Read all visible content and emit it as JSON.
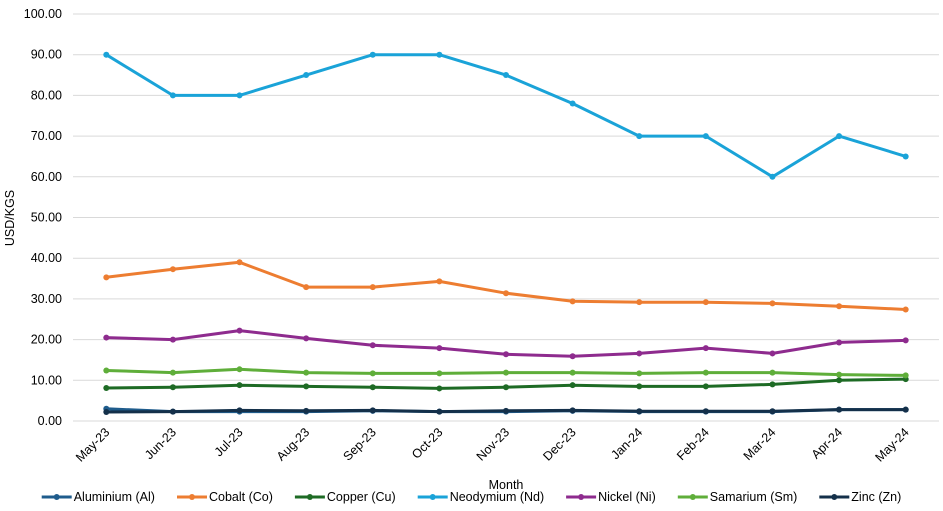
{
  "chart_data": {
    "type": "line",
    "title": "",
    "xlabel": "Month",
    "ylabel": "USD/KGS",
    "ylim": [
      0,
      100
    ],
    "y_ticks": [
      "0.00",
      "10.00",
      "20.00",
      "30.00",
      "40.00",
      "50.00",
      "60.00",
      "70.00",
      "80.00",
      "90.00",
      "100.00"
    ],
    "grid": "horizontal",
    "legend_position": "bottom",
    "categories": [
      "May-23",
      "Jun-23",
      "Jul-23",
      "Aug-23",
      "Sep-23",
      "Oct-23",
      "Nov-23",
      "Dec-23",
      "Jan-24",
      "Feb-24",
      "Mar-24",
      "Apr-24",
      "May-24"
    ],
    "series": [
      {
        "name": "Aluminium (Al)",
        "color": "#1f5c8c",
        "values": [
          3.0,
          2.3,
          2.3,
          2.3,
          2.5,
          2.3,
          2.3,
          2.5,
          2.3,
          2.3,
          2.3,
          2.8,
          2.8
        ]
      },
      {
        "name": "Cobalt (Co)",
        "color": "#ed7d31",
        "values": [
          35.3,
          37.3,
          39.0,
          32.9,
          32.9,
          34.3,
          31.4,
          29.4,
          29.2,
          29.2,
          28.9,
          28.2,
          27.4
        ]
      },
      {
        "name": "Copper (Cu)",
        "color": "#1e6b25",
        "values": [
          8.1,
          8.3,
          8.8,
          8.5,
          8.3,
          8.0,
          8.3,
          8.8,
          8.5,
          8.5,
          9.0,
          10.0,
          10.3
        ]
      },
      {
        "name": "Neodymium (Nd)",
        "color": "#1aa3d8",
        "values": [
          90.0,
          80.0,
          80.0,
          85.0,
          90.0,
          90.0,
          85.0,
          78.0,
          70.0,
          70.0,
          60.0,
          70.0,
          65.0
        ]
      },
      {
        "name": "Nickel (Ni)",
        "color": "#8e2b8e",
        "values": [
          20.5,
          20.0,
          22.2,
          20.3,
          18.6,
          17.9,
          16.4,
          15.9,
          16.6,
          17.9,
          16.6,
          19.3,
          19.8
        ]
      },
      {
        "name": "Samarium (Sm)",
        "color": "#5fae3a",
        "values": [
          12.4,
          11.9,
          12.7,
          11.9,
          11.7,
          11.7,
          11.9,
          11.9,
          11.7,
          11.9,
          11.9,
          11.4,
          11.2
        ]
      },
      {
        "name": "Zinc (Zn)",
        "color": "#14304a",
        "values": [
          2.2,
          2.3,
          2.6,
          2.5,
          2.6,
          2.3,
          2.5,
          2.6,
          2.4,
          2.4,
          2.4,
          2.8,
          2.8
        ]
      }
    ]
  }
}
